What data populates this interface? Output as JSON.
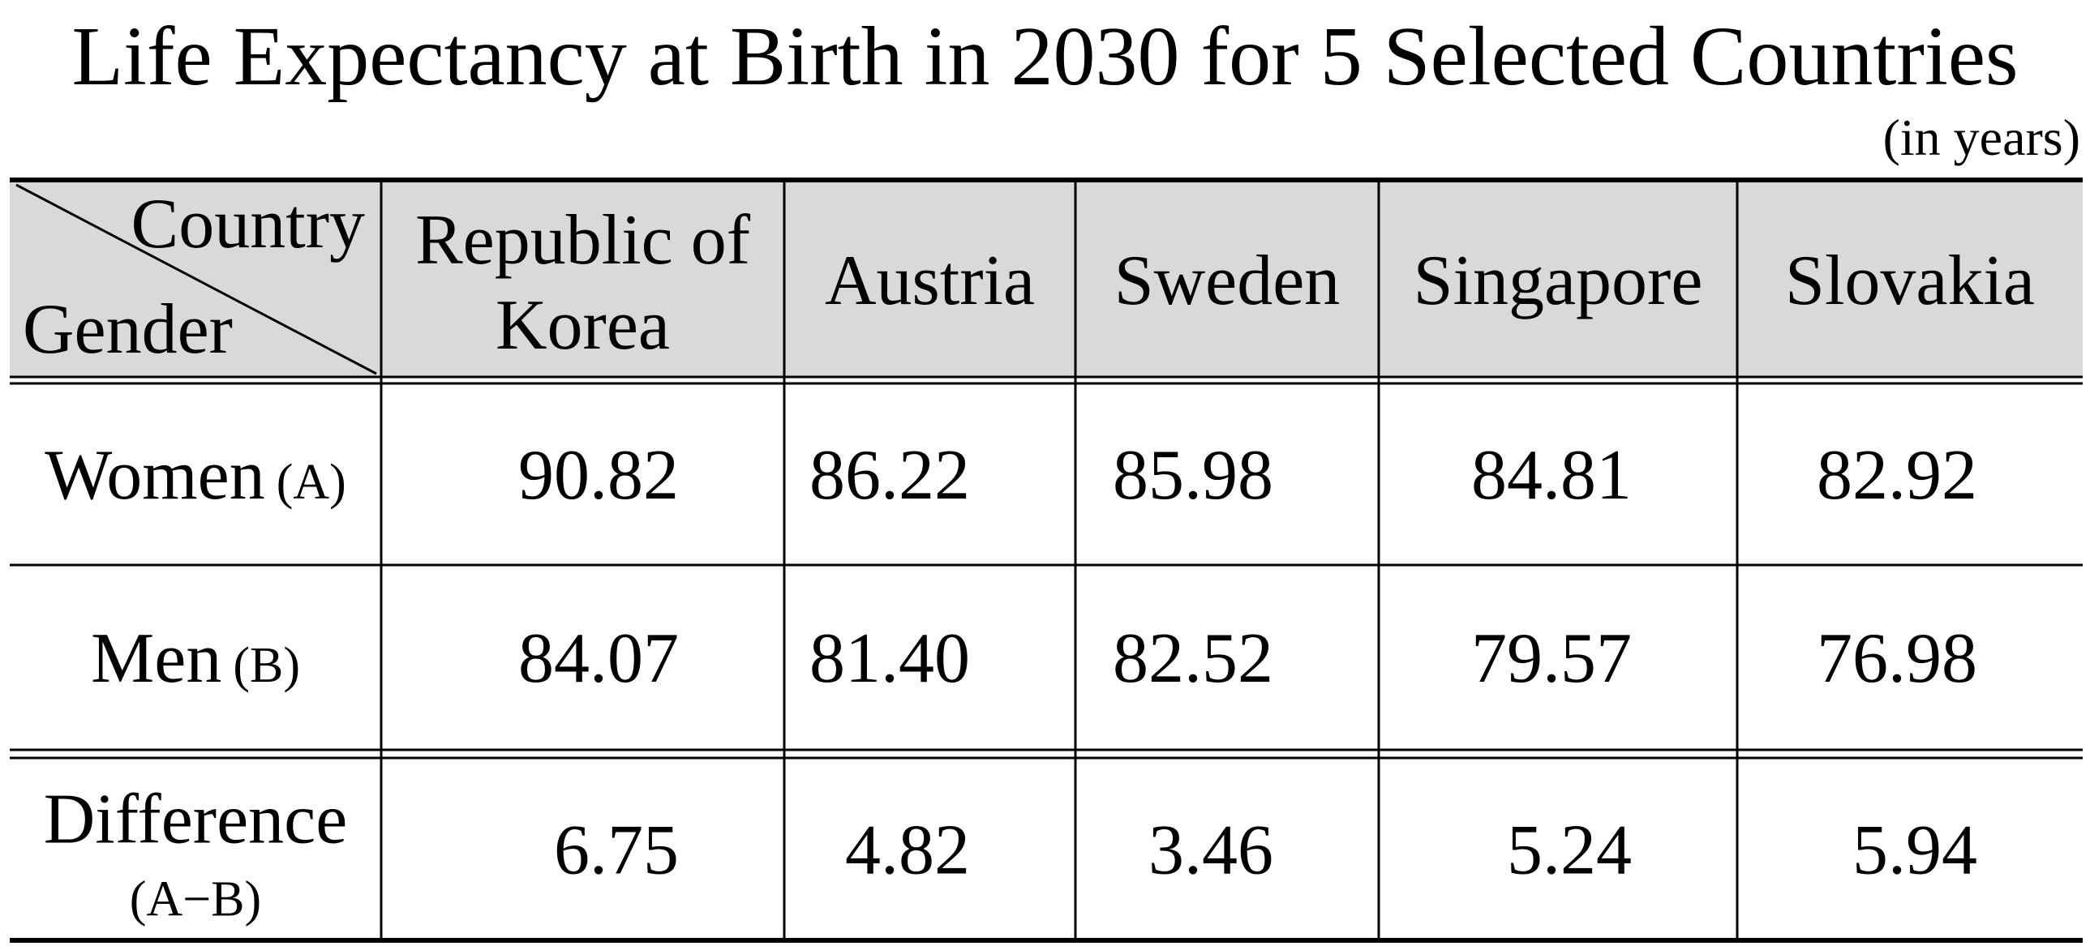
{
  "chart_data": {
    "type": "table",
    "title": "Life Expectancy at Birth in 2030 for 5 Selected Countries",
    "unit": "(in years)",
    "corner_top": "Country",
    "corner_bottom": "Gender",
    "columns": [
      [
        "Republic of",
        "Korea"
      ],
      [
        "Austria"
      ],
      [
        "Sweden"
      ],
      [
        "Singapore"
      ],
      [
        "Slovakia"
      ]
    ],
    "rows": [
      {
        "label": "Women",
        "sub": "(A)",
        "values": [
          "90.82",
          "86.22",
          "85.98",
          "84.81",
          "82.92"
        ]
      },
      {
        "label": "Men",
        "sub": "(B)",
        "values": [
          "84.07",
          "81.40",
          "82.52",
          "79.57",
          "76.98"
        ]
      },
      {
        "label": "Difference",
        "sub": "(A−B)",
        "values": [
          "6.75",
          "4.82",
          "3.46",
          "5.24",
          "5.94"
        ]
      }
    ]
  },
  "colors": {
    "header_fill": "#d9d9d9",
    "line": "#000000",
    "background": "#ffffff"
  }
}
